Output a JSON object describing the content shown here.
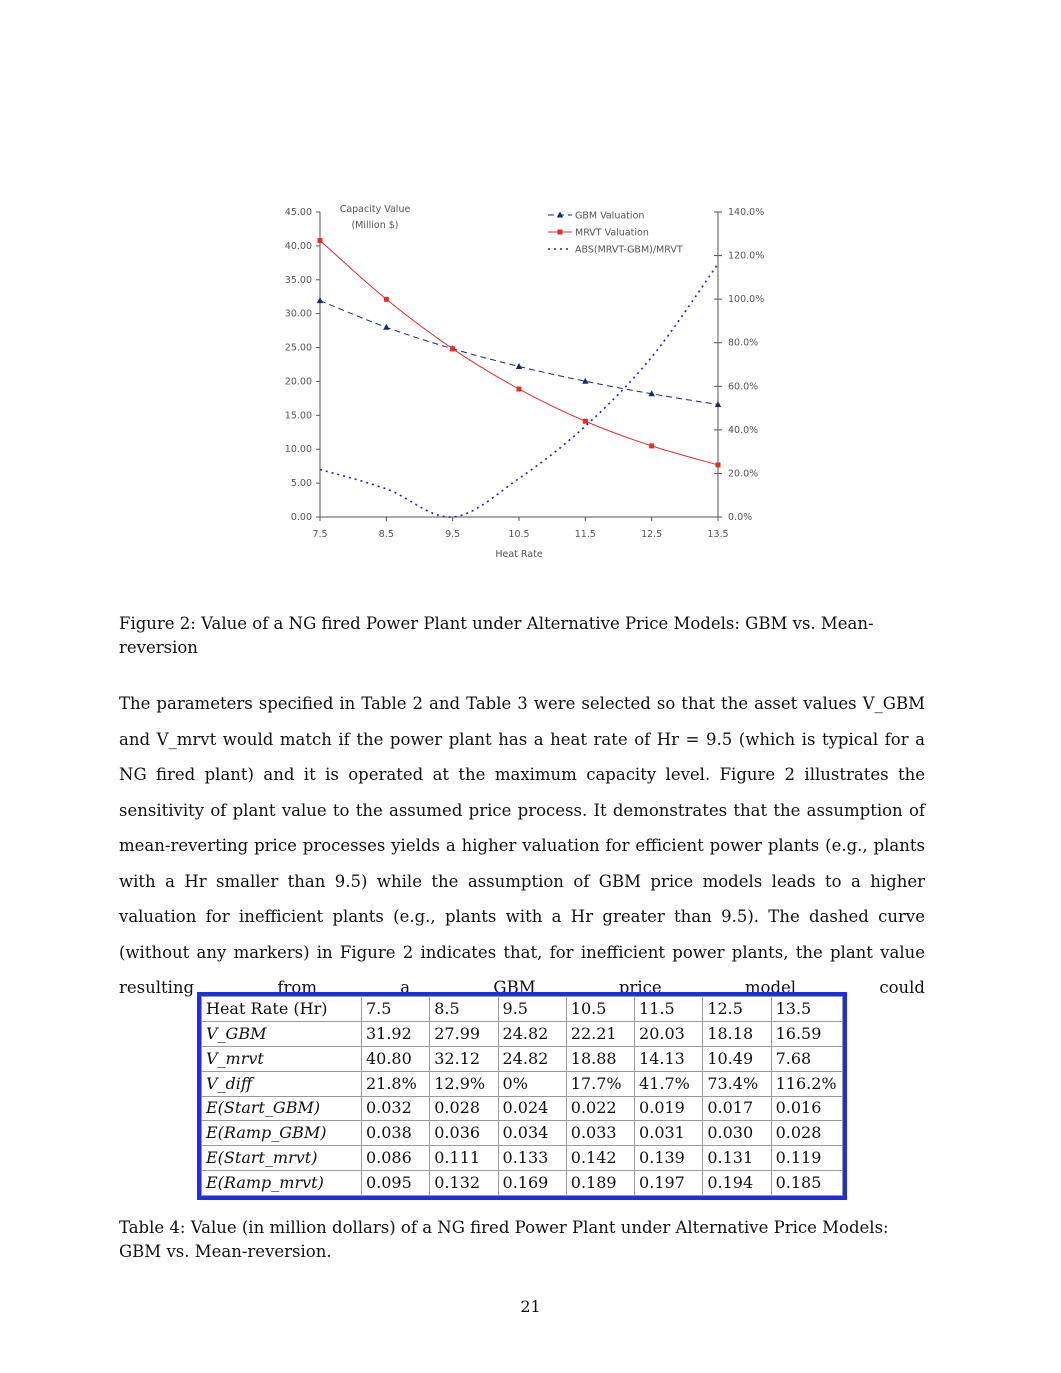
{
  "figure": {
    "caption": "Figure 2: Value of a NG fired Power Plant under Alternative Price Models: GBM vs. Mean-reversion"
  },
  "chart_data": {
    "type": "line",
    "title": "Capacity Value (Million $)",
    "title_line1": "Capacity Value",
    "title_line2": "(Million $)",
    "xlabel": "Heat Rate",
    "x": [
      7.5,
      8.5,
      9.5,
      10.5,
      11.5,
      12.5,
      13.5
    ],
    "x_tick_labels": [
      "7.5",
      "8.5",
      "9.5",
      "10.5",
      "11.5",
      "12.5",
      "13.5"
    ],
    "ylim": [
      0,
      45
    ],
    "y_tick_labels": [
      "0.00",
      "5.00",
      "10.00",
      "15.00",
      "20.00",
      "25.00",
      "30.00",
      "35.00",
      "40.00",
      "45.00"
    ],
    "y2lim": [
      0,
      140
    ],
    "y2_tick_labels": [
      "0.0%",
      "20.0%",
      "40.0%",
      "60.0%",
      "80.0%",
      "100.0%",
      "120.0%",
      "140.0%"
    ],
    "legend_position": "top-right",
    "series": [
      {
        "name": "GBM Valuation",
        "axis": "left",
        "values": [
          31.92,
          27.99,
          24.82,
          22.21,
          20.03,
          18.18,
          16.59
        ],
        "color": "#1b2a6b",
        "marker": "triangle",
        "dash": "6,4"
      },
      {
        "name": "MRVT Valuation",
        "axis": "left",
        "values": [
          40.8,
          32.12,
          24.82,
          18.88,
          14.13,
          10.49,
          7.68
        ],
        "color": "#d93030",
        "marker": "square",
        "dash": ""
      },
      {
        "name": "ABS(MRVT-GBM)/MRVT",
        "axis": "right",
        "values": [
          21.8,
          12.9,
          0.0,
          17.7,
          41.7,
          73.4,
          116.2
        ],
        "color": "#1b2aa0",
        "marker": "none",
        "dash": "2,4"
      }
    ]
  },
  "body": {
    "paragraph": "The parameters specified in Table 2 and Table 3 were selected so that the asset values V_GBM and V_mrvt would match if the power plant has a heat rate of Hr = 9.5 (which is typical for a NG fired plant) and it is operated at the maximum capacity level. Figure 2 illustrates the sensitivity of plant value to the assumed price process. It demonstrates that the assumption of mean-reverting price processes yields a higher valuation for efficient power plants (e.g., plants with a Hr smaller than 9.5) while the assumption of GBM price models leads to a higher valuation for inefficient plants (e.g., plants with a Hr greater than 9.5). The dashed curve (without any markers) in Figure 2 indicates that, for inefficient power plants, the plant value resulting from a GBM price model could"
  },
  "table": {
    "rows": [
      {
        "label": "Heat Rate (Hr)",
        "values": [
          "7.5",
          "8.5",
          "9.5",
          "10.5",
          "11.5",
          "12.5",
          "13.5"
        ]
      },
      {
        "label": "V_GBM",
        "values": [
          "31.92",
          "27.99",
          "24.82",
          "22.21",
          "20.03",
          "18.18",
          "16.59"
        ]
      },
      {
        "label": "V_mrvt",
        "values": [
          "40.80",
          "32.12",
          "24.82",
          "18.88",
          "14.13",
          "10.49",
          "7.68"
        ]
      },
      {
        "label": "V_diff",
        "values": [
          "21.8%",
          "12.9%",
          "0%",
          "17.7%",
          "41.7%",
          "73.4%",
          "116.2%"
        ]
      },
      {
        "label": "E(Start_GBM)",
        "values": [
          "0.032",
          "0.028",
          "0.024",
          "0.022",
          "0.019",
          "0.017",
          "0.016"
        ]
      },
      {
        "label": "E(Ramp_GBM)",
        "values": [
          "0.038",
          "0.036",
          "0.034",
          "0.033",
          "0.031",
          "0.030",
          "0.028"
        ]
      },
      {
        "label": "E(Start_mrvt)",
        "values": [
          "0.086",
          "0.111",
          "0.133",
          "0.142",
          "0.139",
          "0.131",
          "0.119"
        ]
      },
      {
        "label": "E(Ramp_mrvt)",
        "values": [
          "0.095",
          "0.132",
          "0.169",
          "0.189",
          "0.197",
          "0.194",
          "0.185"
        ]
      }
    ],
    "caption": "Table 4: Value (in million dollars) of a NG fired Power Plant under Alternative Price Models: GBM vs. Mean-reversion."
  },
  "page_number": "21"
}
